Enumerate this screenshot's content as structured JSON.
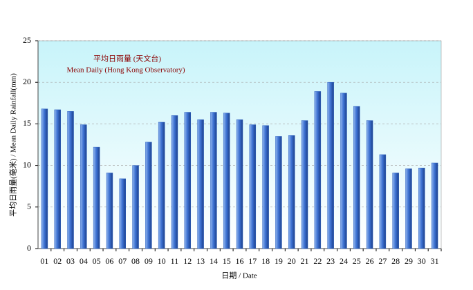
{
  "chart_data": {
    "type": "bar",
    "title": "平均日雨量 (天文台)",
    "subtitle": "Mean Daily (Hong Kong Observatory)",
    "x_label": "日期 / Date",
    "y_label": "平均日雨量(毫米) / Mean Daily Rainfall(mm)",
    "categories": [
      "01",
      "02",
      "03",
      "04",
      "05",
      "06",
      "07",
      "08",
      "09",
      "10",
      "11",
      "12",
      "13",
      "14",
      "15",
      "16",
      "17",
      "18",
      "19",
      "20",
      "21",
      "22",
      "23",
      "24",
      "25",
      "26",
      "27",
      "28",
      "29",
      "30",
      "31"
    ],
    "values": [
      16.8,
      16.7,
      16.5,
      14.9,
      12.2,
      9.1,
      8.4,
      10.0,
      12.8,
      15.2,
      16.0,
      16.4,
      15.5,
      16.4,
      16.3,
      15.5,
      14.9,
      14.8,
      13.5,
      13.6,
      15.4,
      18.9,
      20.0,
      18.7,
      17.1,
      15.4,
      11.3,
      9.1,
      9.6,
      9.7,
      10.3
    ],
    "color": "#2e62c0",
    "ylim": [
      0,
      25
    ],
    "yticks": [
      0,
      5,
      10,
      15,
      20,
      25
    ],
    "grid": true
  }
}
